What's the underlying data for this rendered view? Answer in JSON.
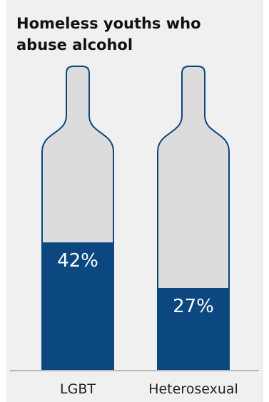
{
  "chart_data": {
    "type": "bar",
    "title": "Homeless youths who abuse alcohol",
    "categories": [
      "LGBT",
      "Heterosexual"
    ],
    "values": [
      42,
      27
    ],
    "data_labels": [
      "42%",
      "27%"
    ],
    "ylim": [
      0,
      100
    ],
    "xlabel": "",
    "ylabel": "",
    "grid": false,
    "legend": "none",
    "colors": {
      "fill": "#0b4780",
      "empty": "#dcdcdc",
      "outline": "#0b4780",
      "panel": "#f0f0f0",
      "label_on_fill": "#ffffff",
      "baseline": "#a6a6a6"
    }
  }
}
